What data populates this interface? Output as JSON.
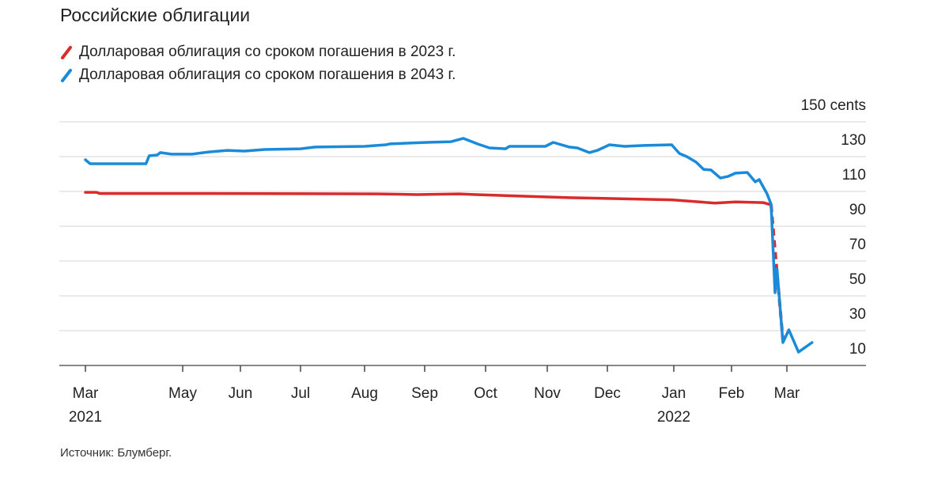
{
  "chart_data": {
    "type": "line",
    "title": "Российские облигации",
    "source": "Источник: Блумберг.",
    "ylabel_unit": "150 cents",
    "yticks": [
      150,
      130,
      110,
      90,
      70,
      50,
      30,
      10
    ],
    "ylim": [
      0,
      150
    ],
    "grid": true,
    "legend_position": "top-left",
    "xticks": [
      {
        "date": "2021-03-01",
        "label": "Mar",
        "year": "2021"
      },
      {
        "date": "2021-05-01",
        "label": "May",
        "year": ""
      },
      {
        "date": "2021-06-01",
        "label": "Jun",
        "year": ""
      },
      {
        "date": "2021-07-01",
        "label": "Jul",
        "year": ""
      },
      {
        "date": "2021-08-01",
        "label": "Aug",
        "year": ""
      },
      {
        "date": "2021-09-01",
        "label": "Sep",
        "year": ""
      },
      {
        "date": "2021-10-01",
        "label": "Oct",
        "year": ""
      },
      {
        "date": "2021-11-01",
        "label": "Nov",
        "year": ""
      },
      {
        "date": "2021-12-01",
        "label": "Dec",
        "year": ""
      },
      {
        "date": "2022-01-01",
        "label": "Jan",
        "year": "2022"
      },
      {
        "date": "2022-02-01",
        "label": "Feb",
        "year": ""
      },
      {
        "date": "2022-03-01",
        "label": "Mar",
        "year": ""
      }
    ],
    "series": [
      {
        "name": "Долларовая облигация со сроком погашения в 2023 г.",
        "color": "#d92b2b",
        "dashed_from": "2022-02-21",
        "points": [
          [
            "2021-03-01",
            99.5
          ],
          [
            "2021-03-08",
            99.5
          ],
          [
            "2021-03-10",
            98.8
          ],
          [
            "2021-05-15",
            98.8
          ],
          [
            "2021-08-08",
            98.6
          ],
          [
            "2021-08-28",
            98.2
          ],
          [
            "2021-09-18",
            98.6
          ],
          [
            "2021-09-26",
            98.2
          ],
          [
            "2021-11-12",
            96.4
          ],
          [
            "2021-12-31",
            95.2
          ],
          [
            "2022-01-23",
            93.3
          ],
          [
            "2022-02-03",
            94.0
          ],
          [
            "2022-02-17",
            93.6
          ],
          [
            "2022-02-21",
            92.3
          ],
          [
            "2022-02-27",
            14.5
          ]
        ]
      },
      {
        "name": "Долларовая облигация со сроком погашения в 2043 г.",
        "color": "#1a8bd8",
        "points": [
          [
            "2021-03-01",
            118.2
          ],
          [
            "2021-03-04",
            115.9
          ],
          [
            "2021-04-08",
            115.9
          ],
          [
            "2021-04-10",
            120.5
          ],
          [
            "2021-04-15",
            120.9
          ],
          [
            "2021-04-17",
            122.3
          ],
          [
            "2021-04-24",
            121.4
          ],
          [
            "2021-05-06",
            121.4
          ],
          [
            "2021-05-15",
            122.7
          ],
          [
            "2021-05-25",
            123.6
          ],
          [
            "2021-06-03",
            123.2
          ],
          [
            "2021-06-13",
            124.1
          ],
          [
            "2021-07-01",
            124.5
          ],
          [
            "2021-07-08",
            125.5
          ],
          [
            "2021-08-01",
            125.9
          ],
          [
            "2021-08-12",
            126.8
          ],
          [
            "2021-08-14",
            127.3
          ],
          [
            "2021-09-02",
            128.2
          ],
          [
            "2021-09-14",
            128.6
          ],
          [
            "2021-09-20",
            130.5
          ],
          [
            "2021-09-27",
            127.3
          ],
          [
            "2021-10-03",
            125.0
          ],
          [
            "2021-10-11",
            124.5
          ],
          [
            "2021-10-13",
            125.9
          ],
          [
            "2021-10-31",
            125.9
          ],
          [
            "2021-11-04",
            128.2
          ],
          [
            "2021-11-12",
            125.5
          ],
          [
            "2021-11-16",
            125.0
          ],
          [
            "2021-11-22",
            122.3
          ],
          [
            "2021-11-26",
            123.6
          ],
          [
            "2021-12-02",
            126.8
          ],
          [
            "2021-12-09",
            125.9
          ],
          [
            "2021-12-18",
            126.4
          ],
          [
            "2021-12-31",
            126.8
          ],
          [
            "2022-01-04",
            121.8
          ],
          [
            "2022-01-08",
            120.0
          ],
          [
            "2022-01-13",
            116.8
          ],
          [
            "2022-01-17",
            112.7
          ],
          [
            "2022-01-21",
            112.3
          ],
          [
            "2022-01-26",
            107.7
          ],
          [
            "2022-01-30",
            108.6
          ],
          [
            "2022-02-03",
            110.5
          ],
          [
            "2022-02-09",
            110.9
          ],
          [
            "2022-02-13",
            105.5
          ],
          [
            "2022-02-15",
            106.8
          ],
          [
            "2022-02-19",
            98.6
          ],
          [
            "2022-02-21",
            92.7
          ],
          [
            "2022-02-23",
            41.8
          ],
          [
            "2022-02-24",
            55.5
          ],
          [
            "2022-02-27",
            13.2
          ],
          [
            "2022-03-02",
            20.5
          ],
          [
            "2022-03-07",
            7.7
          ],
          [
            "2022-03-14",
            13.2
          ]
        ]
      }
    ]
  }
}
